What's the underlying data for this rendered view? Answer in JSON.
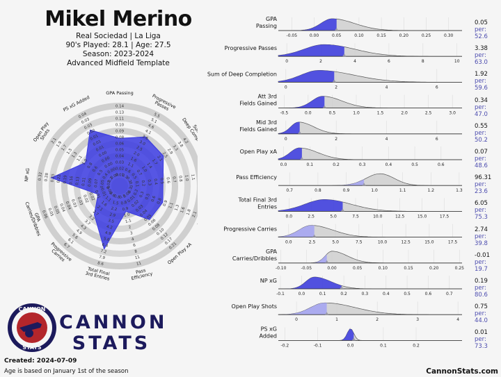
{
  "header": {
    "name": "Mikel Merino",
    "line1": "Real Sociedad | La Liga",
    "line2": "90's Played: 28.1 | Age: 27.5",
    "line3": "Season: 2023-2024",
    "line4": "Advanced Midfield Template"
  },
  "footer": {
    "created": "Created: 2024-07-09",
    "age_note": "Age is based on January 1st of the season",
    "site": "CannonStats.com",
    "brand_line1": "CANNON",
    "brand_line2": "STATS",
    "logo_top": "CANNON",
    "logo_bottom": "STATS"
  },
  "colors": {
    "accent": "#3a3ae0",
    "accent_light": "#a9a9f0",
    "grey": "#cfcfcf",
    "dark_navy": "#1c1a5c",
    "logo_red": "#b3262b"
  },
  "chart_data": [
    {
      "type": "radar",
      "axes": [
        {
          "label": "GPA Passing",
          "ticks": [
            "0.01",
            "0.02",
            "0.03",
            "0.04",
            "0.05",
            "0.06",
            "0.08",
            "0.09",
            "0.10",
            "0.11",
            "0.13",
            "0.14"
          ],
          "percentile": 52.6
        },
        {
          "label": "Progressive Passes",
          "ticks": [
            "0.3",
            "0.6",
            "1.1",
            "1.6",
            "2.0",
            "2.5",
            "3.0",
            "3.6",
            "4.1",
            "4.6",
            "5.1",
            "5.5"
          ],
          "percentile": 63.0
        },
        {
          "label": "Sum of Deep Completion",
          "ticks": [
            "0.2",
            "0.5",
            "0.7",
            "1.0",
            "1.4",
            "1.7",
            "2.1",
            "2.5",
            "2.9",
            "3.3",
            "3.8",
            "4.2"
          ],
          "percentile": 59.6
        },
        {
          "label": "Att 3rd Fields Gained",
          "ticks": [
            "0.0",
            "0.1",
            "0.2",
            "0.3",
            "0.4",
            "0.5",
            "0.6",
            "0.7",
            "0.8",
            "1.0",
            "1.1",
            "1.2"
          ],
          "percentile": 47.0
        },
        {
          "label": "Mid 3rd Fields Gained",
          "ticks": [
            "0.1",
            "0.2",
            "0.3",
            "0.5",
            "0.6",
            "0.8",
            "0.9",
            "1.1",
            "1.3",
            "1.6",
            "1.8",
            "2.1"
          ],
          "percentile": 50.2
        },
        {
          "label": "Open Play xA",
          "ticks": [
            "0.00",
            "0.01",
            "0.02",
            "0.03",
            "0.04",
            "0.05",
            "0.06",
            "0.08",
            "0.10",
            "0.12",
            "0.17",
            "0.21"
          ],
          "percentile": 48.6
        },
        {
          "label": "Pass Efficiency",
          "ticks": [
            "0.7",
            "0.8",
            "0.9",
            "1.0",
            "1.1",
            "2",
            "3",
            "4",
            "6",
            "8",
            "11",
            "11"
          ],
          "percentile": 23.6
        },
        {
          "label": "Total Final 3rd Entries",
          "ticks": [
            "0.8",
            "1.5",
            "2.2",
            "2.9",
            "3.5",
            "4.2",
            "4.9",
            "5.6",
            "6.4",
            "7.2",
            "7.9",
            "8.6"
          ],
          "percentile": 75.3
        },
        {
          "label": "Progressive Carries",
          "ticks": [
            "0.6",
            "1.1",
            "1.6",
            "2.1",
            "2.7",
            "3.2",
            "3.7",
            "4.3",
            "4.9",
            "5.6",
            "6.1",
            "6.7"
          ],
          "percentile": 39.8
        },
        {
          "label": "GPA Carries/Dribbles",
          "ticks": [
            "0.00",
            "0.01",
            "0.01",
            "0.02",
            "0.02",
            "0.03",
            "0.03",
            "0.04",
            "0.04",
            "0.05",
            "0.05",
            "0.06"
          ],
          "percentile": 19.7
        },
        {
          "label": "NP xG",
          "ticks": [
            "0.02",
            "0.05",
            "0.07",
            "0.09",
            "0.11",
            "0.13",
            "0.16",
            "0.19",
            "0.22",
            "0.25",
            "0.28",
            "0.32"
          ],
          "percentile": 80.6
        },
        {
          "label": "Open Play Shots",
          "ticks": [
            "0.2",
            "0.4",
            "0.5",
            "0.6",
            "0.8",
            "1.0",
            "1.1",
            "1.3",
            "1.5",
            "1.7",
            "1.9",
            "2.1"
          ],
          "percentile": 44.0
        },
        {
          "label": "PS xG Added",
          "ticks": [
            "0.00",
            "0.00",
            "0.00",
            "0.00",
            "0.00",
            "0.01",
            "0.01",
            "0.01",
            "0.02",
            "0.03",
            "0.03",
            "0.04"
          ],
          "percentile": 73.3
        }
      ]
    },
    {
      "type": "area",
      "panels": [
        {
          "label": [
            "GPA",
            "Passing"
          ],
          "value": "0.05",
          "per": "per: 52.6",
          "xlim": [
            -0.08,
            0.33
          ],
          "ticks": [
            "-0.05",
            "0.00",
            "0.05",
            "0.10",
            "0.15",
            "0.20",
            "0.25",
            "0.30"
          ],
          "tick_values": [
            -0.05,
            0,
            0.05,
            0.1,
            0.15,
            0.2,
            0.25,
            0.3
          ],
          "player": 0.05,
          "peak": 0.04,
          "spread_left": 0.025,
          "spread_right": 0.05,
          "shade": "dark"
        },
        {
          "label": [
            "Progressive Passes"
          ],
          "value": "3.38",
          "per": "per: 63.0",
          "xlim": [
            -0.5,
            10.3
          ],
          "ticks": [
            "0",
            "2",
            "4",
            "6",
            "8",
            "10"
          ],
          "tick_values": [
            0,
            2,
            4,
            6,
            8,
            10
          ],
          "player": 3.38,
          "peak": 2.2,
          "spread_left": 1.2,
          "spread_right": 1.8,
          "shade": "dark"
        },
        {
          "label": [
            "Sum of Deep Completion"
          ],
          "value": "1.92",
          "per": "per: 59.6",
          "xlim": [
            -0.3,
            7.0
          ],
          "ticks": [
            "0",
            "2",
            "4",
            "6"
          ],
          "tick_values": [
            0,
            2,
            4,
            6
          ],
          "player": 1.92,
          "peak": 1.3,
          "spread_left": 0.7,
          "spread_right": 1.4,
          "shade": "dark"
        },
        {
          "label": [
            "Att 3rd",
            "Fields Gained"
          ],
          "value": "0.34",
          "per": "per: 47.0",
          "xlim": [
            -0.62,
            3.2
          ],
          "ticks": [
            "-0.5",
            "0.0",
            "0.5",
            "1.0",
            "1.5",
            "2.0",
            "2.5",
            "3.0"
          ],
          "tick_values": [
            -0.5,
            0,
            0.5,
            1,
            1.5,
            2,
            2.5,
            3
          ],
          "player": 0.34,
          "peak": 0.3,
          "spread_left": 0.22,
          "spread_right": 0.4,
          "shade": "dark"
        },
        {
          "label": [
            "Mid 3rd",
            "Fields Gained"
          ],
          "value": "0.55",
          "per": "per: 50.2",
          "xlim": [
            -0.3,
            7.0
          ],
          "ticks": [
            "0",
            "2",
            "4",
            "6"
          ],
          "tick_values": [
            0,
            2,
            4,
            6
          ],
          "player": 0.55,
          "peak": 0.5,
          "spread_left": 0.3,
          "spread_right": 0.6,
          "shade": "dark"
        },
        {
          "label": [
            "Open Play xA"
          ],
          "value": "0.07",
          "per": "per: 48.6",
          "xlim": [
            -0.02,
            0.68
          ],
          "ticks": [
            "0.0",
            "0.1",
            "0.2",
            "0.3",
            "0.4",
            "0.5",
            "0.6"
          ],
          "tick_values": [
            0,
            0.1,
            0.2,
            0.3,
            0.4,
            0.5,
            0.6
          ],
          "player": 0.07,
          "peak": 0.06,
          "spread_left": 0.035,
          "spread_right": 0.07,
          "shade": "dark"
        },
        {
          "label": [
            "Pass Efficiency"
          ],
          "value": "96.31",
          "per": "per: 23.6",
          "xlim": [
            0.66,
            1.31
          ],
          "ticks": [
            "0.7",
            "0.8",
            "0.9",
            "1.0",
            "1.1",
            "1.2",
            "1.3"
          ],
          "tick_values": [
            0.7,
            0.8,
            0.9,
            1.0,
            1.1,
            1.2,
            1.3
          ],
          "player": 0.963,
          "peak": 1.02,
          "spread_left": 0.05,
          "spread_right": 0.05,
          "shade": "light"
        },
        {
          "label": [
            "Total Final 3rd",
            "Entries"
          ],
          "value": "6.05",
          "per": "per: 75.3",
          "xlim": [
            -1.2,
            19.5
          ],
          "ticks": [
            "0.0",
            "2.5",
            "5.0",
            "7.5",
            "10.0",
            "12.5",
            "15.0",
            "17.5"
          ],
          "tick_values": [
            0,
            2.5,
            5,
            7.5,
            10,
            12.5,
            15,
            17.5
          ],
          "player": 6.05,
          "peak": 4.0,
          "spread_left": 2.2,
          "spread_right": 3.0,
          "shade": "dark"
        },
        {
          "label": [
            "Progressive Carries"
          ],
          "value": "2.74",
          "per": "per: 39.8",
          "xlim": [
            -1.1,
            18.5
          ],
          "ticks": [
            "0.0",
            "2.5",
            "5.0",
            "7.5",
            "10.0",
            "12.5",
            "15.0",
            "17.5"
          ],
          "tick_values": [
            0,
            2.5,
            5,
            7.5,
            10,
            12.5,
            15,
            17.5
          ],
          "player": 2.74,
          "peak": 2.4,
          "spread_left": 1.3,
          "spread_right": 2.3,
          "shade": "light"
        },
        {
          "label": [
            "GPA",
            "Carries/Dribbles"
          ],
          "value": "-0.01",
          "per": "per: 19.7",
          "xlim": [
            -0.105,
            0.255
          ],
          "ticks": [
            "-0.10",
            "-0.05",
            "0.00",
            "0.05",
            "0.10",
            "0.15",
            "0.20",
            "0.25"
          ],
          "tick_values": [
            -0.1,
            -0.05,
            0,
            0.05,
            0.1,
            0.15,
            0.2,
            0.25
          ],
          "player": -0.01,
          "peak": 0.0,
          "spread_left": 0.013,
          "spread_right": 0.03,
          "shade": "light"
        },
        {
          "label": [
            "NP xG"
          ],
          "value": "0.19",
          "per": "per: 80.6",
          "xlim": [
            -0.11,
            0.76
          ],
          "ticks": [
            "-0.1",
            "0.0",
            "0.1",
            "0.2",
            "0.3",
            "0.4",
            "0.5",
            "0.6",
            "0.7"
          ],
          "tick_values": [
            -0.1,
            0,
            0.1,
            0.2,
            0.3,
            0.4,
            0.5,
            0.6,
            0.7
          ],
          "player": 0.19,
          "peak": 0.06,
          "spread_left": 0.04,
          "spread_right": 0.08,
          "shade": "dark"
        },
        {
          "label": [
            "Open Play Shots"
          ],
          "value": "0.75",
          "per": "per: 44.0",
          "xlim": [
            -0.45,
            4.1
          ],
          "ticks": [
            "0",
            "1",
            "2",
            "3",
            "4"
          ],
          "tick_values": [
            0,
            1,
            2,
            3,
            4
          ],
          "player": 0.75,
          "peak": 0.7,
          "spread_left": 0.35,
          "spread_right": 0.75,
          "shade": "light"
        },
        {
          "label": [
            "PS xG",
            "Added"
          ],
          "value": "0.01",
          "per": "per: 73.3",
          "xlim": [
            -0.22,
            0.34
          ],
          "ticks": [
            "-0.2",
            "-0.1",
            "0.0",
            "0.1",
            "0.2"
          ],
          "tick_values": [
            -0.2,
            -0.1,
            0,
            0.1,
            0.2
          ],
          "player": 0.01,
          "peak": 0.0,
          "spread_left": 0.01,
          "spread_right": 0.01,
          "shade": "dark"
        }
      ]
    }
  ]
}
